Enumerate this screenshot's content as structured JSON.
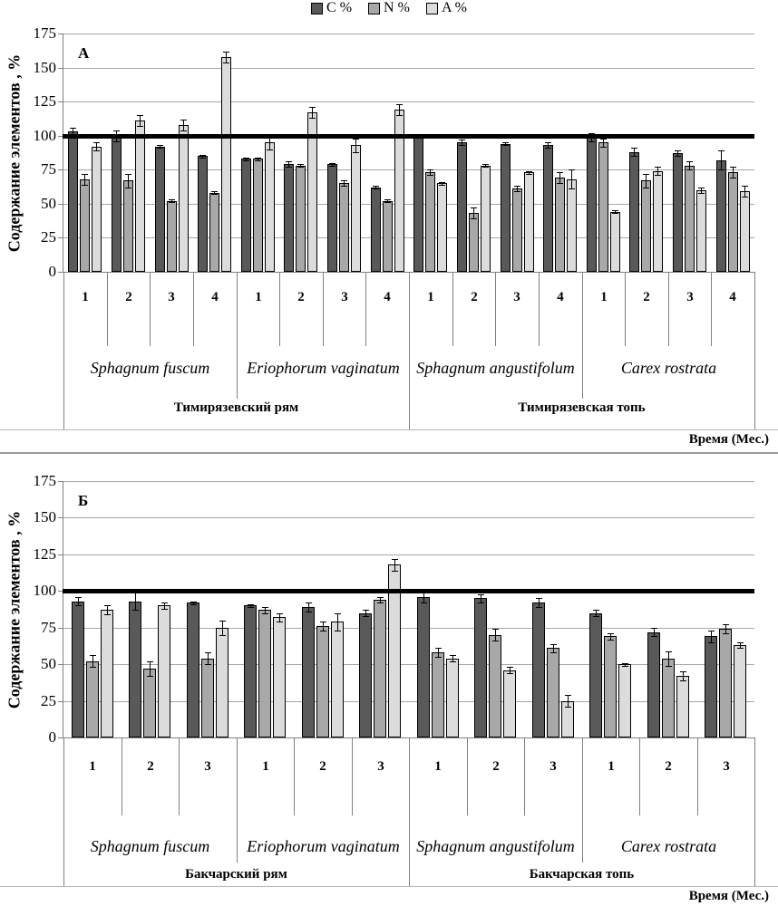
{
  "legend": {
    "items": [
      {
        "id": "c",
        "label": "C %",
        "color": "#595959"
      },
      {
        "id": "n",
        "label": "N %",
        "color": "#a8a8a8"
      },
      {
        "id": "a",
        "label": "A %",
        "color": "#dcdcdc"
      }
    ]
  },
  "colors": {
    "c": "#595959",
    "n": "#a8a8a8",
    "a": "#dcdcdc",
    "bar_border": "#000000",
    "gridline": "#a6a6a6",
    "axis": "#7f7f7f",
    "reference_line": "#000000"
  },
  "chart_data": [
    {
      "type": "bar",
      "panel_label": "А",
      "ylabel": "Содержание элементов , %",
      "xlabel": "Время (Мес.)",
      "ylim": [
        0,
        175
      ],
      "yticks": [
        0,
        25,
        50,
        75,
        100,
        125,
        150,
        175
      ],
      "reference_line": 100,
      "grid": true,
      "legend_position": "top-center",
      "series_names": [
        "C %",
        "N %",
        "A %"
      ],
      "regions": [
        {
          "label": "Тимирязевский рям",
          "species": [
            {
              "label": "Sphagnum fuscum",
              "months": [
                "1",
                "2",
                "3",
                "4"
              ],
              "values": {
                "c": [
                  103,
                  100,
                  92,
                  85
                ],
                "n": [
                  68,
                  67,
                  52,
                  58
                ],
                "a": [
                  92,
                  111,
                  108,
                  158
                ]
              },
              "errors": {
                "c": [
                  3,
                  4,
                  1,
                  1
                ],
                "n": [
                  4,
                  5,
                  1,
                  1
                ],
                "a": [
                  3,
                  4,
                  4,
                  4
                ]
              }
            },
            {
              "label": "Eriophorum vaginatum",
              "months": [
                "1",
                "2",
                "3",
                "4"
              ],
              "values": {
                "c": [
                  83,
                  79,
                  79,
                  62
                ],
                "n": [
                  83,
                  78,
                  65,
                  52
                ],
                "a": [
                  95,
                  117,
                  93,
                  119
                ]
              },
              "errors": {
                "c": [
                  1,
                  2,
                  1,
                  1
                ],
                "n": [
                  1,
                  1,
                  2,
                  1
                ],
                "a": [
                  5,
                  4,
                  5,
                  4
                ]
              }
            }
          ]
        },
        {
          "label": "Тимирязевская топь",
          "species": [
            {
              "label": "Sphagnum angustifolum",
              "months": [
                "1",
                "2",
                "3",
                "4"
              ],
              "values": {
                "c": [
                  100,
                  95,
                  94,
                  93
                ],
                "n": [
                  73,
                  43,
                  61,
                  69
                ],
                "a": [
                  65,
                  78,
                  73,
                  68
                ]
              },
              "errors": {
                "c": [
                  1,
                  2,
                  1,
                  2
                ],
                "n": [
                  2,
                  4,
                  2,
                  4
                ],
                "a": [
                  1,
                  1,
                  1,
                  7
                ]
              }
            },
            {
              "label": "Carex rostrata",
              "months": [
                "1",
                "2",
                "3",
                "4"
              ],
              "values": {
                "c": [
                  99,
                  88,
                  87,
                  82
                ],
                "n": [
                  95,
                  67,
                  78,
                  73
                ],
                "a": [
                  44,
                  74,
                  60,
                  59
                ]
              },
              "errors": {
                "c": [
                  3,
                  3,
                  2,
                  7
                ],
                "n": [
                  3,
                  5,
                  3,
                  4
                ],
                "a": [
                  1,
                  3,
                  2,
                  4
                ]
              }
            }
          ]
        }
      ]
    },
    {
      "type": "bar",
      "panel_label": "Б",
      "ylabel": "Содержание элементов , %",
      "xlabel": "Время (Мес.)",
      "ylim": [
        0,
        175
      ],
      "yticks": [
        0,
        25,
        50,
        75,
        100,
        125,
        150,
        175
      ],
      "reference_line": 100,
      "grid": true,
      "series_names": [
        "C %",
        "N %",
        "A %"
      ],
      "regions": [
        {
          "label": "Бакчарский рям",
          "species": [
            {
              "label": "Sphagnum fuscum",
              "months": [
                "1",
                "2",
                "3"
              ],
              "values": {
                "c": [
                  93,
                  93,
                  92
                ],
                "n": [
                  52,
                  47,
                  54
                ],
                "a": [
                  87,
                  90,
                  75
                ]
              },
              "errors": {
                "c": [
                  3,
                  6,
                  1
                ],
                "n": [
                  4,
                  5,
                  4
                ],
                "a": [
                  3,
                  2,
                  5
                ]
              }
            },
            {
              "label": "Eriophorum vaginatum",
              "months": [
                "1",
                "2",
                "3"
              ],
              "values": {
                "c": [
                  90,
                  89,
                  85
                ],
                "n": [
                  87,
                  76,
                  94
                ],
                "a": [
                  82,
                  79,
                  118
                ]
              },
              "errors": {
                "c": [
                  1,
                  3,
                  2
                ],
                "n": [
                  2,
                  3,
                  2
                ],
                "a": [
                  3,
                  6,
                  4
                ]
              }
            }
          ]
        },
        {
          "label": "Бакчарская топь",
          "species": [
            {
              "label": "Sphagnum angustifolum",
              "months": [
                "1",
                "2",
                "3"
              ],
              "values": {
                "c": [
                  96,
                  95,
                  92
                ],
                "n": [
                  58,
                  70,
                  61
                ],
                "a": [
                  54,
                  46,
                  25
                ]
              },
              "errors": {
                "c": [
                  4,
                  3,
                  3
                ],
                "n": [
                  3,
                  4,
                  3
                ],
                "a": [
                  2,
                  2,
                  4
                ]
              }
            },
            {
              "label": "Carex rostrata",
              "months": [
                "1",
                "2",
                "3"
              ],
              "values": {
                "c": [
                  85,
                  72,
                  69
                ],
                "n": [
                  69,
                  54,
                  74
                ],
                "a": [
                  50,
                  42,
                  63
                ]
              },
              "errors": {
                "c": [
                  2,
                  3,
                  4
                ],
                "n": [
                  2,
                  5,
                  3
                ],
                "a": [
                  1,
                  3,
                  2
                ]
              }
            }
          ]
        }
      ]
    }
  ]
}
